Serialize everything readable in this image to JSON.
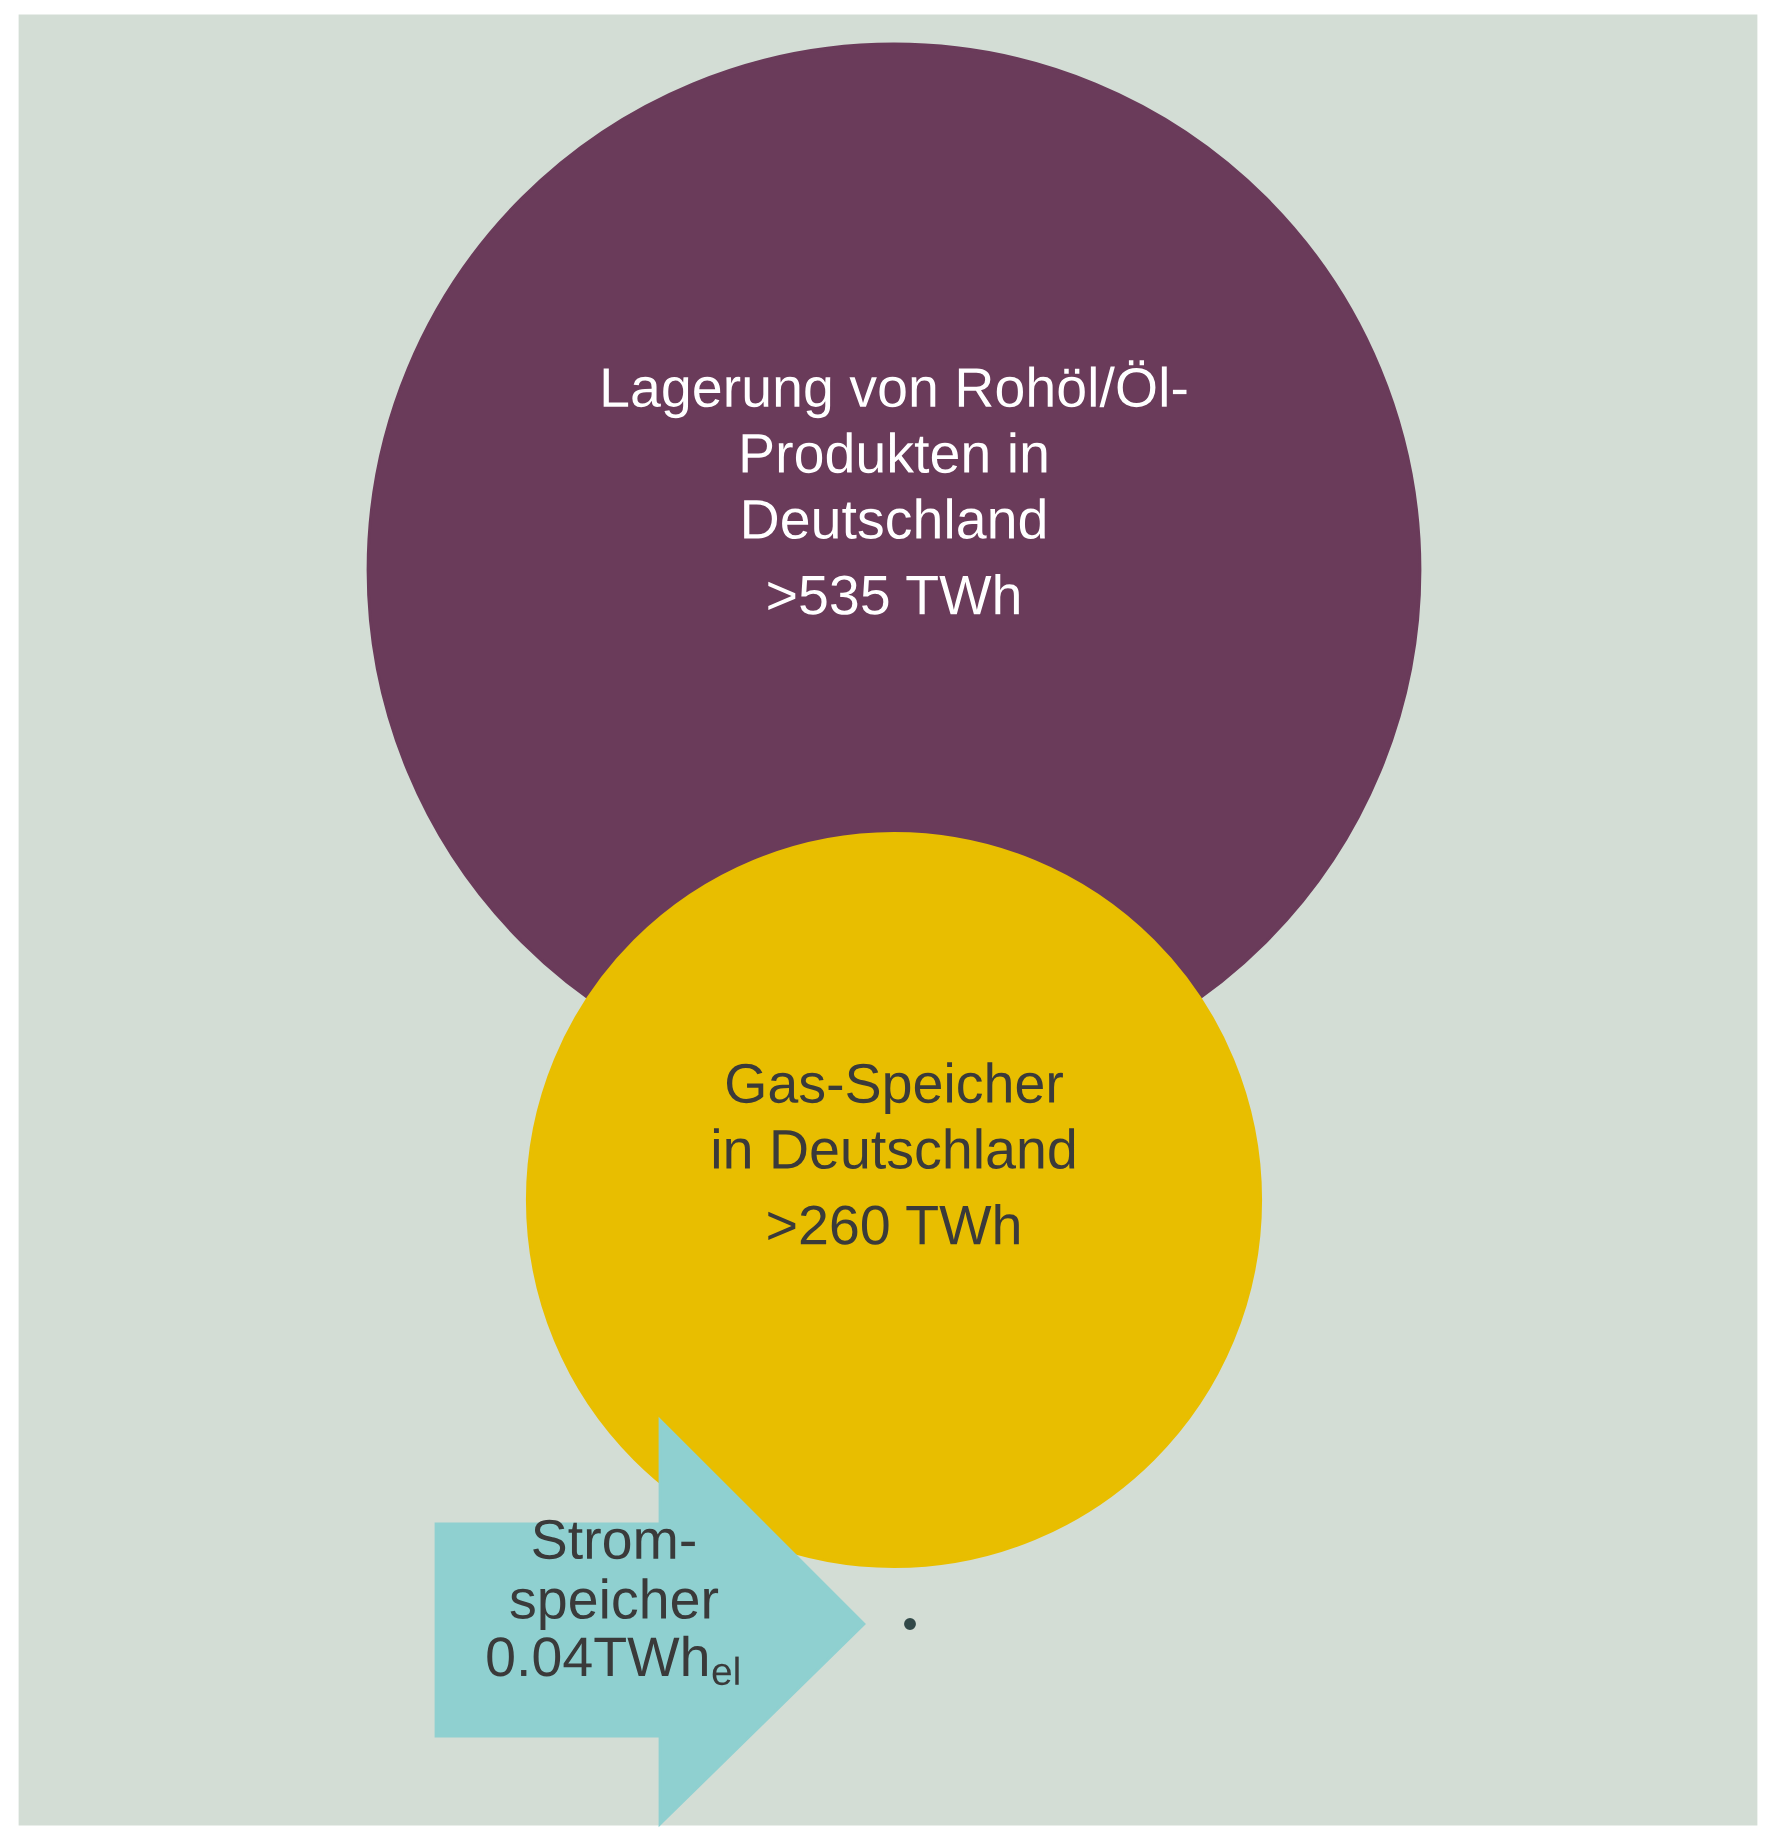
{
  "chart_data": {
    "type": "other",
    "categories": [
      "Lagerung von Rohöl/Öl-\nProdukten in\nDeutschland",
      "Gas-Speicher\nin Deutschland",
      "Strom-\nspeicher"
    ],
    "values": [
      535,
      260,
      0.04
    ],
    "value_labels": [
      ">535 TWh",
      ">260 TWh",
      "0.04TWh$_{el}$"
    ],
    "colors": [
      "#6a3b5a",
      "#e8be00",
      "#8fd0d0"
    ]
  }
}
